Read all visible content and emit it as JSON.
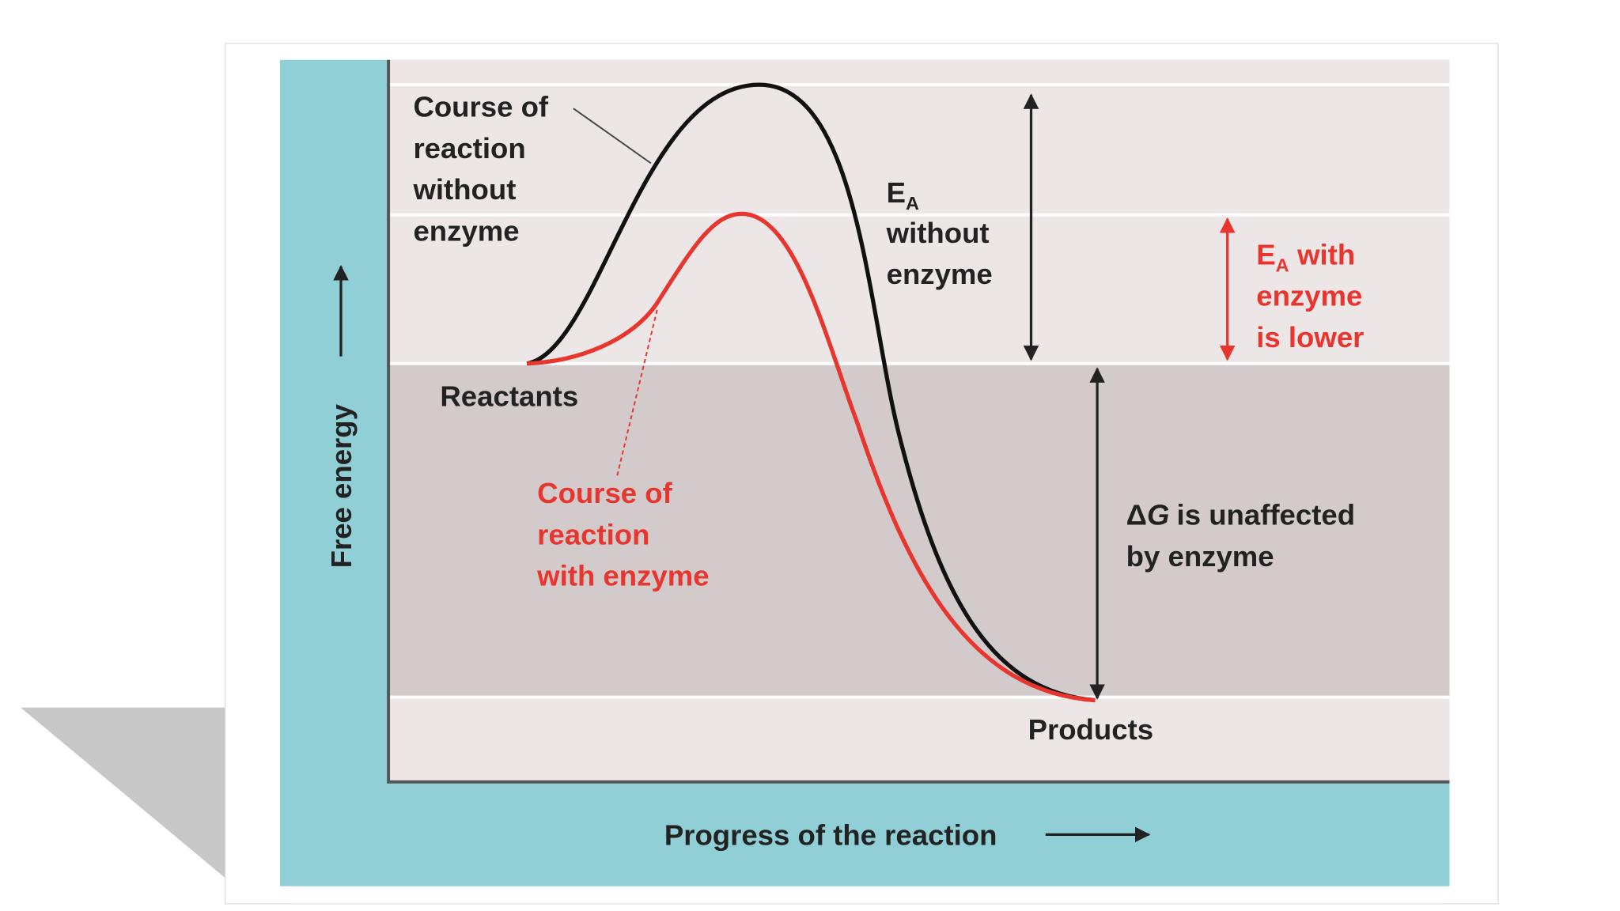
{
  "axes": {
    "y_label": "Free energy",
    "x_label": "Progress of the reaction"
  },
  "labels": {
    "uncatalyzed": [
      "Course of",
      "reaction",
      "without",
      "enzyme"
    ],
    "catalyzed": [
      "Course of",
      "reaction",
      "with enzyme"
    ],
    "reactants": "Reactants",
    "products": "Products",
    "ea_without": {
      "symbol": "E",
      "subscript": "A",
      "lines": [
        "without",
        "enzyme"
      ]
    },
    "ea_with": {
      "symbol": "E",
      "subscript": "A",
      "rest": "with",
      "lines": [
        "enzyme",
        "is lower"
      ]
    },
    "delta_g": {
      "delta": "Δ",
      "symbol": "G",
      "rest": "is unaffected",
      "lines": [
        "by enzyme"
      ]
    }
  }
}
